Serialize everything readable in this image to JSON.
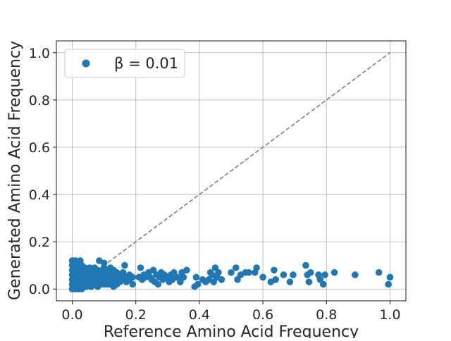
{
  "chart_data": {
    "type": "scatter",
    "xlabel": "Reference Amino Acid Frequency",
    "ylabel": "Generated Amino Acid Frequency",
    "xlim": [
      -0.05,
      1.05
    ],
    "ylim": [
      -0.05,
      1.05
    ],
    "xticks": [
      0.0,
      0.2,
      0.4,
      0.6,
      0.8,
      1.0
    ],
    "yticks": [
      0.0,
      0.2,
      0.4,
      0.6,
      0.8,
      1.0
    ],
    "xtick_labels": [
      "0.0",
      "0.2",
      "0.4",
      "0.6",
      "0.8",
      "1.0"
    ],
    "ytick_labels": [
      "0.0",
      "0.2",
      "0.4",
      "0.6",
      "0.8",
      "1.0"
    ],
    "grid": true,
    "legend_position": "top-left",
    "legend_label": "β = 0.01",
    "reference_line": {
      "from": [
        0,
        0
      ],
      "to": [
        1,
        1
      ],
      "style": "dashed",
      "color": "#808080"
    },
    "series": [
      {
        "name": "β = 0.01",
        "color": "#1f77b4",
        "points": [
          [
            0.0,
            0.0
          ],
          [
            0.0,
            0.02
          ],
          [
            0.0,
            0.04
          ],
          [
            0.0,
            0.06
          ],
          [
            0.0,
            0.08
          ],
          [
            0.0,
            0.1
          ],
          [
            0.0,
            0.12
          ],
          [
            0.005,
            0.01
          ],
          [
            0.005,
            0.03
          ],
          [
            0.005,
            0.05
          ],
          [
            0.005,
            0.07
          ],
          [
            0.005,
            0.09
          ],
          [
            0.005,
            0.11
          ],
          [
            0.01,
            0.0
          ],
          [
            0.01,
            0.02
          ],
          [
            0.01,
            0.04
          ],
          [
            0.01,
            0.06
          ],
          [
            0.01,
            0.08
          ],
          [
            0.01,
            0.1
          ],
          [
            0.01,
            0.12
          ],
          [
            0.015,
            0.01
          ],
          [
            0.015,
            0.03
          ],
          [
            0.015,
            0.05
          ],
          [
            0.015,
            0.07
          ],
          [
            0.015,
            0.09
          ],
          [
            0.02,
            0.0
          ],
          [
            0.02,
            0.02
          ],
          [
            0.02,
            0.04
          ],
          [
            0.02,
            0.06
          ],
          [
            0.02,
            0.08
          ],
          [
            0.02,
            0.1
          ],
          [
            0.02,
            0.11
          ],
          [
            0.025,
            0.01
          ],
          [
            0.025,
            0.03
          ],
          [
            0.025,
            0.05
          ],
          [
            0.025,
            0.07
          ],
          [
            0.025,
            0.12
          ],
          [
            0.03,
            0.0
          ],
          [
            0.03,
            0.02
          ],
          [
            0.03,
            0.04
          ],
          [
            0.03,
            0.06
          ],
          [
            0.03,
            0.09
          ],
          [
            0.03,
            0.1
          ],
          [
            0.035,
            0.01
          ],
          [
            0.035,
            0.03
          ],
          [
            0.035,
            0.05
          ],
          [
            0.035,
            0.08
          ],
          [
            0.04,
            0.02
          ],
          [
            0.04,
            0.04
          ],
          [
            0.04,
            0.06
          ],
          [
            0.04,
            0.07
          ],
          [
            0.04,
            0.09
          ],
          [
            0.045,
            0.01
          ],
          [
            0.045,
            0.03
          ],
          [
            0.045,
            0.05
          ],
          [
            0.045,
            0.08
          ],
          [
            0.05,
            0.02
          ],
          [
            0.05,
            0.04
          ],
          [
            0.05,
            0.06
          ],
          [
            0.05,
            0.07
          ],
          [
            0.055,
            0.03
          ],
          [
            0.055,
            0.05
          ],
          [
            0.055,
            0.09
          ],
          [
            0.06,
            0.01
          ],
          [
            0.06,
            0.04
          ],
          [
            0.06,
            0.06
          ],
          [
            0.06,
            0.08
          ],
          [
            0.065,
            0.03
          ],
          [
            0.065,
            0.05
          ],
          [
            0.065,
            0.07
          ],
          [
            0.07,
            0.02
          ],
          [
            0.07,
            0.04
          ],
          [
            0.07,
            0.06
          ],
          [
            0.07,
            0.09
          ],
          [
            0.075,
            0.03
          ],
          [
            0.075,
            0.05
          ],
          [
            0.075,
            0.07
          ],
          [
            0.08,
            0.01
          ],
          [
            0.08,
            0.04
          ],
          [
            0.08,
            0.06
          ],
          [
            0.08,
            0.08
          ],
          [
            0.085,
            0.03
          ],
          [
            0.085,
            0.05
          ],
          [
            0.085,
            0.12
          ],
          [
            0.09,
            0.02
          ],
          [
            0.09,
            0.04
          ],
          [
            0.09,
            0.06
          ],
          [
            0.09,
            0.07
          ],
          [
            0.095,
            0.03
          ],
          [
            0.095,
            0.05
          ],
          [
            0.095,
            0.08
          ],
          [
            0.1,
            0.02
          ],
          [
            0.1,
            0.04
          ],
          [
            0.1,
            0.06
          ],
          [
            0.1,
            0.09
          ],
          [
            0.1,
            0.11
          ],
          [
            0.105,
            0.03
          ],
          [
            0.105,
            0.05
          ],
          [
            0.105,
            0.07
          ],
          [
            0.11,
            0.02
          ],
          [
            0.11,
            0.04
          ],
          [
            0.11,
            0.06
          ],
          [
            0.11,
            0.08
          ],
          [
            0.115,
            0.03
          ],
          [
            0.115,
            0.05
          ],
          [
            0.12,
            0.02
          ],
          [
            0.12,
            0.04
          ],
          [
            0.12,
            0.07
          ],
          [
            0.12,
            0.09
          ],
          [
            0.125,
            0.03
          ],
          [
            0.125,
            0.05
          ],
          [
            0.13,
            0.01
          ],
          [
            0.13,
            0.04
          ],
          [
            0.13,
            0.06
          ],
          [
            0.13,
            0.08
          ],
          [
            0.135,
            0.03
          ],
          [
            0.135,
            0.05
          ],
          [
            0.14,
            0.02
          ],
          [
            0.14,
            0.04
          ],
          [
            0.14,
            0.07
          ],
          [
            0.15,
            0.03
          ],
          [
            0.15,
            0.05
          ],
          [
            0.15,
            0.06
          ],
          [
            0.16,
            0.04
          ],
          [
            0.16,
            0.07
          ],
          [
            0.165,
            0.1
          ],
          [
            0.17,
            0.03
          ],
          [
            0.17,
            0.05
          ],
          [
            0.18,
            0.04
          ],
          [
            0.18,
            0.06
          ],
          [
            0.19,
            0.02
          ],
          [
            0.19,
            0.05
          ],
          [
            0.21,
            0.05
          ],
          [
            0.215,
            0.09
          ],
          [
            0.22,
            0.04
          ],
          [
            0.225,
            0.06
          ],
          [
            0.23,
            0.05
          ],
          [
            0.24,
            0.07
          ],
          [
            0.245,
            0.05
          ],
          [
            0.25,
            0.04
          ],
          [
            0.255,
            0.08
          ],
          [
            0.26,
            0.03
          ],
          [
            0.265,
            0.06
          ],
          [
            0.27,
            0.02
          ],
          [
            0.275,
            0.05
          ],
          [
            0.28,
            0.07
          ],
          [
            0.285,
            0.04
          ],
          [
            0.29,
            0.06
          ],
          [
            0.3,
            0.05
          ],
          [
            0.305,
            0.03
          ],
          [
            0.31,
            0.06
          ],
          [
            0.315,
            0.04
          ],
          [
            0.32,
            0.07
          ],
          [
            0.33,
            0.05
          ],
          [
            0.34,
            0.03
          ],
          [
            0.345,
            0.07
          ],
          [
            0.35,
            0.05
          ],
          [
            0.36,
            0.08
          ],
          [
            0.385,
            0.01
          ],
          [
            0.39,
            0.05
          ],
          [
            0.395,
            0.02
          ],
          [
            0.41,
            0.04
          ],
          [
            0.42,
            0.03
          ],
          [
            0.43,
            0.04
          ],
          [
            0.435,
            0.07
          ],
          [
            0.44,
            0.06
          ],
          [
            0.445,
            0.03
          ],
          [
            0.45,
            0.09
          ],
          [
            0.455,
            0.05
          ],
          [
            0.46,
            0.07
          ],
          [
            0.47,
            0.04
          ],
          [
            0.5,
            0.07
          ],
          [
            0.515,
            0.09
          ],
          [
            0.52,
            0.04
          ],
          [
            0.53,
            0.06
          ],
          [
            0.545,
            0.07
          ],
          [
            0.555,
            0.07
          ],
          [
            0.575,
            0.07
          ],
          [
            0.58,
            0.09
          ],
          [
            0.6,
            0.05
          ],
          [
            0.625,
            0.03
          ],
          [
            0.635,
            0.08
          ],
          [
            0.64,
            0.04
          ],
          [
            0.665,
            0.06
          ],
          [
            0.685,
            0.03
          ],
          [
            0.695,
            0.06
          ],
          [
            0.735,
            0.1
          ],
          [
            0.74,
            0.06
          ],
          [
            0.745,
            0.03
          ],
          [
            0.75,
            0.07
          ],
          [
            0.775,
            0.06
          ],
          [
            0.78,
            0.04
          ],
          [
            0.79,
            0.02
          ],
          [
            0.795,
            0.06
          ],
          [
            0.825,
            0.07
          ],
          [
            0.89,
            0.06
          ],
          [
            0.965,
            0.07
          ],
          [
            0.995,
            0.02
          ],
          [
            1.0,
            0.05
          ]
        ]
      }
    ]
  }
}
